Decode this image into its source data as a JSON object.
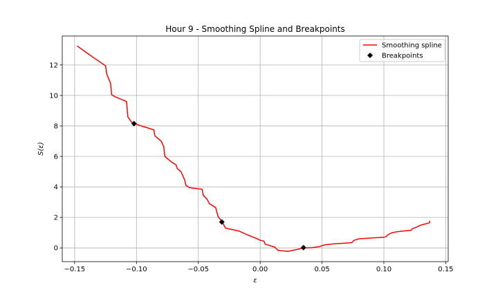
{
  "chart_data": {
    "type": "line",
    "title": "Hour 9 - Smoothing Spline and Breakpoints",
    "xlabel": "ε",
    "ylabel": "S(ε)",
    "xlim": [
      -0.16,
      0.152
    ],
    "ylim": [
      -0.9,
      13.9
    ],
    "xticks": [
      -0.15,
      -0.1,
      -0.05,
      0.0,
      0.05,
      0.1,
      0.15
    ],
    "xtick_labels": [
      "−0.15",
      "−0.10",
      "−0.05",
      "0.00",
      "0.05",
      "0.10",
      "0.15"
    ],
    "yticks": [
      0,
      2,
      4,
      6,
      8,
      10,
      12
    ],
    "ytick_labels": [
      "0",
      "2",
      "4",
      "6",
      "8",
      "10",
      "12"
    ],
    "grid": true,
    "legend_position": "top-right",
    "series": [
      {
        "name": "Smoothing spline",
        "color": "#ff0000",
        "x": [
          -0.148,
          -0.135,
          -0.125,
          -0.124,
          -0.121,
          -0.12,
          -0.117,
          -0.108,
          -0.107,
          -0.104,
          -0.098,
          -0.086,
          -0.085,
          -0.08,
          -0.078,
          -0.077,
          -0.072,
          -0.068,
          -0.067,
          -0.064,
          -0.061,
          -0.06,
          -0.057,
          -0.047,
          -0.046,
          -0.043,
          -0.041,
          -0.036,
          -0.034,
          -0.031,
          -0.028,
          -0.017,
          -0.01,
          -0.001,
          0.0,
          0.003,
          0.004,
          0.012,
          0.013,
          0.015,
          0.02,
          0.022,
          0.024,
          0.03,
          0.034,
          0.036,
          0.042,
          0.048,
          0.05,
          0.052,
          0.06,
          0.07,
          0.074,
          0.076,
          0.08,
          0.09,
          0.1,
          0.102,
          0.103,
          0.106,
          0.11,
          0.115,
          0.122,
          0.123,
          0.126,
          0.13,
          0.135,
          0.137,
          0.137
        ],
        "y": [
          13.25,
          12.5,
          11.95,
          11.4,
          10.8,
          10.05,
          9.9,
          9.6,
          8.6,
          8.25,
          8.05,
          7.75,
          7.35,
          7.0,
          6.65,
          6.0,
          5.65,
          5.45,
          5.2,
          5.0,
          4.45,
          4.1,
          3.95,
          3.85,
          3.45,
          3.2,
          2.9,
          2.65,
          2.05,
          1.75,
          1.3,
          1.1,
          0.85,
          0.55,
          0.5,
          0.45,
          0.25,
          0.05,
          -0.05,
          -0.18,
          -0.2,
          -0.23,
          -0.2,
          -0.1,
          -0.02,
          0.0,
          0.02,
          0.08,
          0.15,
          0.2,
          0.27,
          0.32,
          0.35,
          0.5,
          0.6,
          0.65,
          0.7,
          0.75,
          0.85,
          0.98,
          1.05,
          1.1,
          1.15,
          1.25,
          1.35,
          1.5,
          1.6,
          1.65,
          1.78
        ]
      },
      {
        "name": "Breakpoints",
        "color": "#000000",
        "marker": "diamond",
        "x": [
          -0.102,
          -0.031,
          0.035
        ],
        "y": [
          8.15,
          1.7,
          0.02
        ]
      }
    ]
  }
}
